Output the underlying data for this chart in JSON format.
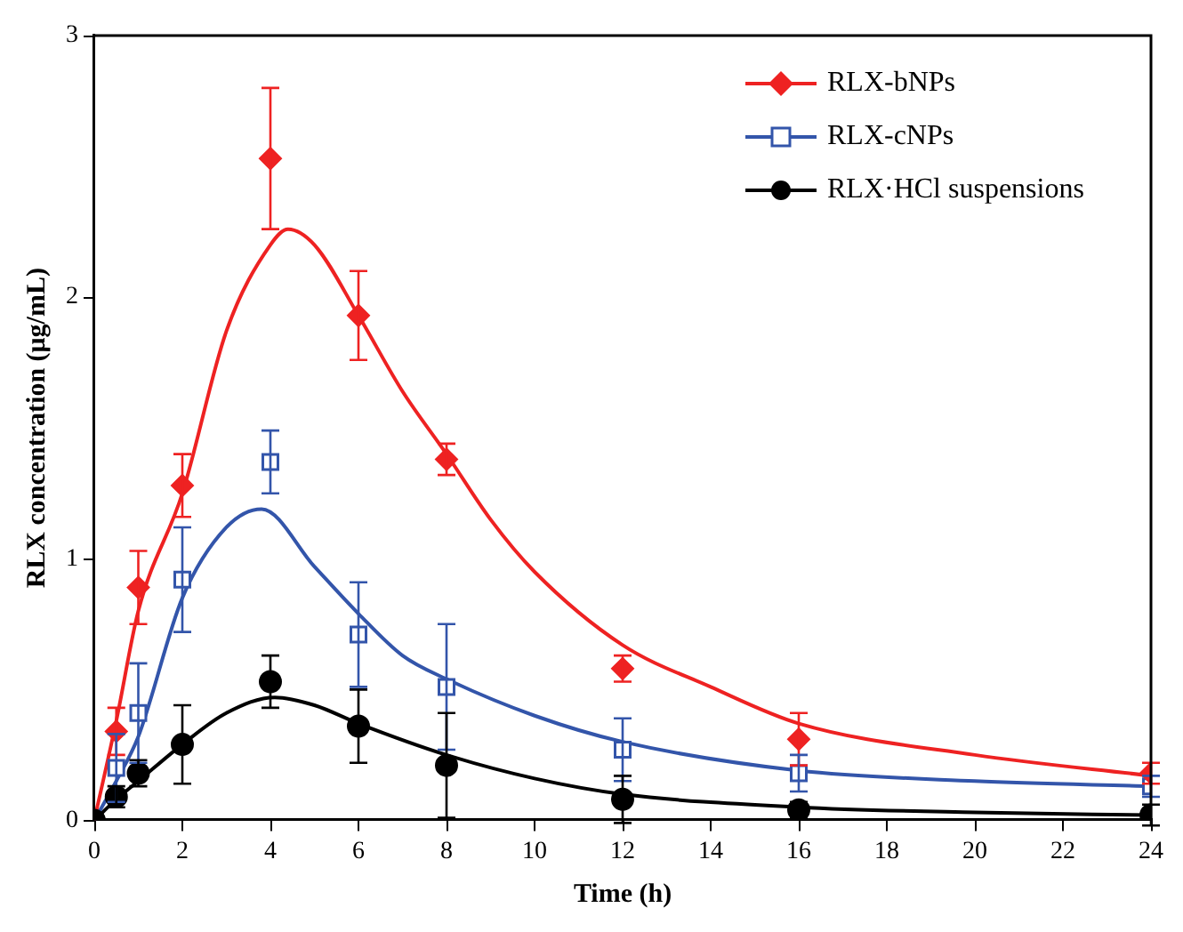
{
  "chart_data": {
    "type": "scatter",
    "xlabel": "Time (h)",
    "ylabel": "RLX concentration (μg/mL)",
    "xlim": [
      0,
      24
    ],
    "ylim": [
      0,
      3
    ],
    "xticks": [
      0,
      2,
      4,
      6,
      8,
      10,
      12,
      14,
      16,
      18,
      20,
      22,
      24
    ],
    "yticks": [
      0,
      1,
      2,
      3
    ],
    "grid": false,
    "legend": "top right",
    "series": [
      {
        "name": "RLX-bNPs",
        "marker": "diamond",
        "color": "#ee2222",
        "x": [
          0.5,
          1,
          2,
          4,
          6,
          8,
          12,
          16,
          24
        ],
        "values": [
          0.34,
          0.89,
          1.28,
          2.53,
          1.93,
          1.38,
          0.58,
          0.31,
          0.18
        ],
        "errors": [
          0.09,
          0.14,
          0.12,
          0.27,
          0.17,
          0.06,
          0.05,
          0.1,
          0.04
        ]
      },
      {
        "name": "RLX-cNPs",
        "marker": "square",
        "color": "#3355aa",
        "x": [
          0.5,
          1,
          2,
          4,
          6,
          8,
          12,
          16,
          24
        ],
        "values": [
          0.2,
          0.41,
          0.92,
          1.37,
          0.71,
          0.51,
          0.27,
          0.18,
          0.13
        ],
        "errors": [
          0.13,
          0.19,
          0.2,
          0.12,
          0.2,
          0.24,
          0.12,
          0.07,
          0.04
        ]
      },
      {
        "name": "RLX·HCl suspensions",
        "marker": "circle",
        "color": "#000000",
        "x": [
          0,
          0.5,
          1,
          2,
          4,
          6,
          8,
          12,
          16,
          24
        ],
        "values": [
          0,
          0.09,
          0.18,
          0.29,
          0.53,
          0.36,
          0.21,
          0.08,
          0.04,
          0.02
        ],
        "errors": [
          null,
          0.04,
          0.05,
          0.15,
          0.1,
          0.14,
          0.2,
          0.09,
          0.03,
          0.04
        ]
      },
      {
        "type": "line",
        "marker": "none",
        "color": "#ee2222",
        "x": [
          0,
          0.5,
          1,
          2,
          3,
          4,
          4.4,
          5,
          6,
          7,
          8,
          9,
          10,
          12,
          14,
          16,
          20,
          24
        ],
        "values": [
          0,
          0.38,
          0.8,
          1.25,
          1.87,
          2.2,
          2.26,
          2.2,
          1.93,
          1.64,
          1.4,
          1.15,
          0.95,
          0.67,
          0.51,
          0.37,
          0.25,
          0.17
        ]
      },
      {
        "type": "line",
        "marker": "none",
        "color": "#3355aa",
        "x": [
          0,
          0.5,
          1,
          2,
          3,
          3.8,
          5,
          6,
          7,
          8,
          10,
          12,
          16,
          20,
          24
        ],
        "values": [
          0,
          0.15,
          0.32,
          0.85,
          1.12,
          1.19,
          0.97,
          0.79,
          0.63,
          0.54,
          0.4,
          0.3,
          0.19,
          0.15,
          0.13
        ]
      },
      {
        "type": "line",
        "marker": "none",
        "color": "#000000",
        "x": [
          0,
          0.5,
          1,
          2,
          3,
          4.1,
          5,
          6,
          8,
          10,
          12,
          16,
          20,
          24
        ],
        "values": [
          0,
          0.08,
          0.15,
          0.29,
          0.41,
          0.47,
          0.44,
          0.37,
          0.25,
          0.16,
          0.1,
          0.05,
          0.03,
          0.02
        ]
      }
    ]
  }
}
